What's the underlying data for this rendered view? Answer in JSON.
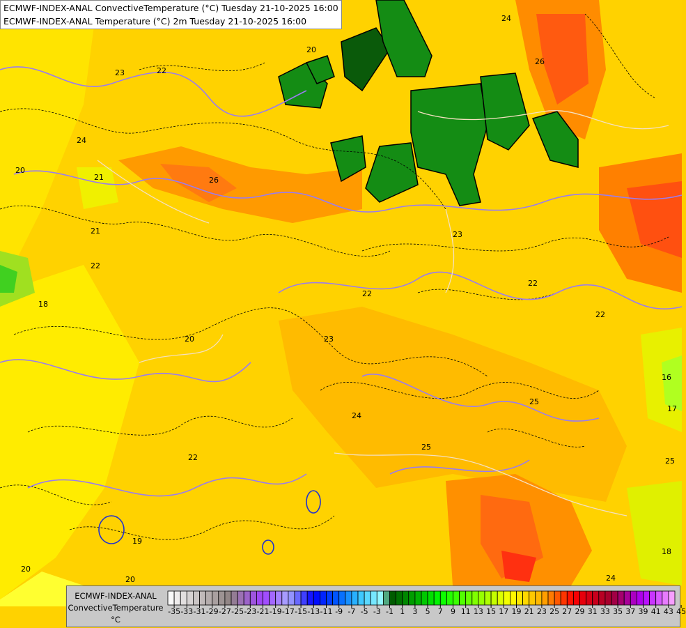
{
  "header": {
    "line1": "ECMWF-INDEX-ANAL ConvectiveTemperature (°C) Tuesday 21-10-2025 16:00",
    "line2": "ECMWF-INDEX-ANAL Temperature (°C) 2m Tuesday 21-10-2025 16:00"
  },
  "legend": {
    "model": "ECMWF-INDEX-ANAL",
    "parameter": "ConvectiveTemperature",
    "unit": "°C",
    "min": -35,
    "max": 45,
    "step": 1,
    "tick_labels": [
      "-35",
      "-33",
      "-31",
      "-29",
      "-27",
      "-25",
      "-23",
      "-21",
      "-19",
      "-17",
      "-15",
      "-13",
      "-11",
      "-9",
      "-7",
      "-5",
      "-3",
      "-1",
      "1",
      "3",
      "5",
      "7",
      "9",
      "11",
      "13",
      "15",
      "17",
      "19",
      "21",
      "23",
      "25",
      "27",
      "29",
      "31",
      "33",
      "35",
      "37",
      "39",
      "41",
      "43",
      "45"
    ],
    "color_stops": [
      {
        "value": -35,
        "color": "#ffffff"
      },
      {
        "value": -25,
        "color": "#8c8080"
      },
      {
        "value": -24,
        "color": "#9a78a8"
      },
      {
        "value": -20,
        "color": "#a040ff"
      },
      {
        "value": -16,
        "color": "#a8a8ff"
      },
      {
        "value": -12,
        "color": "#0000ff"
      },
      {
        "value": -8,
        "color": "#0060ff"
      },
      {
        "value": -5,
        "color": "#30c0ff"
      },
      {
        "value": -1,
        "color": "#a0ffff"
      },
      {
        "value": 0,
        "color": "#005000"
      },
      {
        "value": 8,
        "color": "#00ff00"
      },
      {
        "value": 19,
        "color": "#ffff00"
      },
      {
        "value": 24,
        "color": "#ffb000"
      },
      {
        "value": 29,
        "color": "#ff0000"
      },
      {
        "value": 35,
        "color": "#a00030"
      },
      {
        "value": 40,
        "color": "#b000ff"
      },
      {
        "value": 45,
        "color": "#ffb0ff"
      }
    ]
  },
  "map": {
    "contour_labels": [
      "23",
      "22",
      "24",
      "20",
      "26",
      "21",
      "18",
      "22",
      "20",
      "23",
      "22",
      "24",
      "25",
      "25",
      "22",
      "19",
      "20",
      "24",
      "26",
      "23",
      "21",
      "22",
      "20",
      "17",
      "25",
      "18",
      "24",
      "22",
      "16",
      "20"
    ]
  }
}
